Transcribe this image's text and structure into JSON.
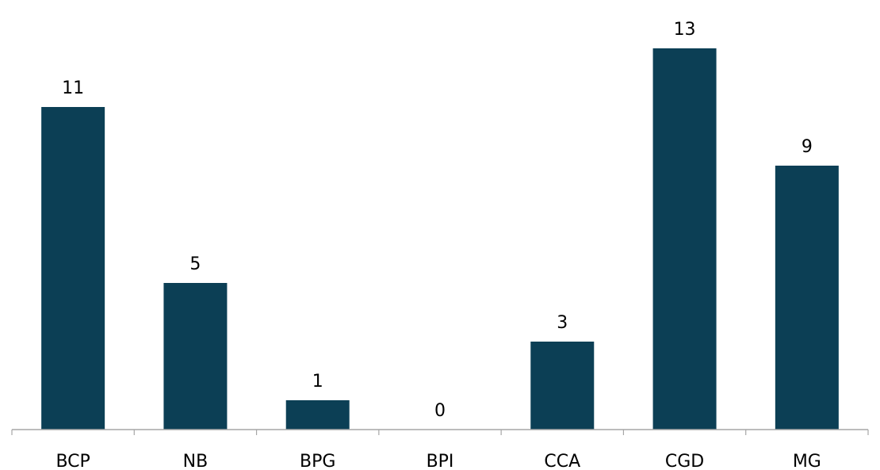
{
  "chart_data": {
    "type": "bar",
    "categories": [
      "BCP",
      "NB",
      "BPG",
      "BPI",
      "CCA",
      "CGD",
      "MG"
    ],
    "values": [
      11,
      5,
      1,
      0,
      3,
      13,
      9
    ],
    "ylim": [
      0,
      13
    ],
    "grid": false,
    "data_labels": true,
    "colors": {
      "bar": "#0c3f55",
      "axis": "#a6a6a6",
      "text": "#000000"
    }
  }
}
